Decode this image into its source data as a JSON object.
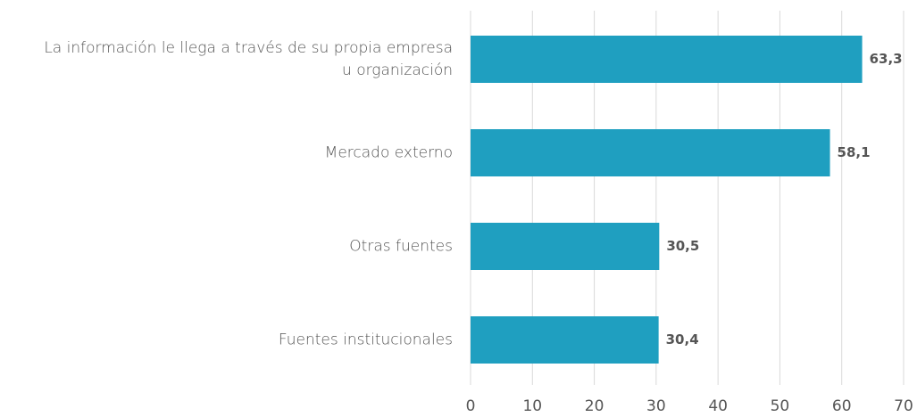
{
  "chart_data": {
    "type": "bar",
    "orientation": "horizontal",
    "categories": [
      "La información le llega a través de su propia empresa\nu organización",
      "Mercado externo",
      "Otras fuentes",
      "Fuentes institucionales"
    ],
    "values": [
      63.3,
      58.1,
      30.5,
      30.4
    ],
    "value_labels": [
      "63,3",
      "58,1",
      "30,5",
      "30,4"
    ],
    "color": "#1f9fc0",
    "xlim": [
      0,
      70
    ],
    "xticks": [
      0,
      10,
      20,
      30,
      40,
      50,
      60,
      70
    ],
    "grid": true
  }
}
